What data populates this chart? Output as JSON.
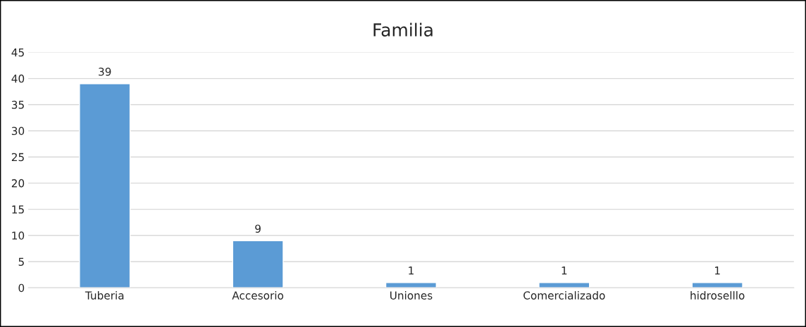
{
  "chart_data": {
    "type": "bar",
    "title": "Familia",
    "categories": [
      "Tuberia",
      "Accesorio",
      "Uniones",
      "Comercializado",
      "hidroselllo"
    ],
    "values": [
      39,
      9,
      1,
      1,
      1
    ],
    "color": "#5b9bd5",
    "ylim": [
      0,
      45
    ],
    "yticks": [
      0,
      5,
      10,
      15,
      20,
      25,
      30,
      35,
      40,
      45
    ],
    "grid": "y",
    "data_labels": true
  }
}
